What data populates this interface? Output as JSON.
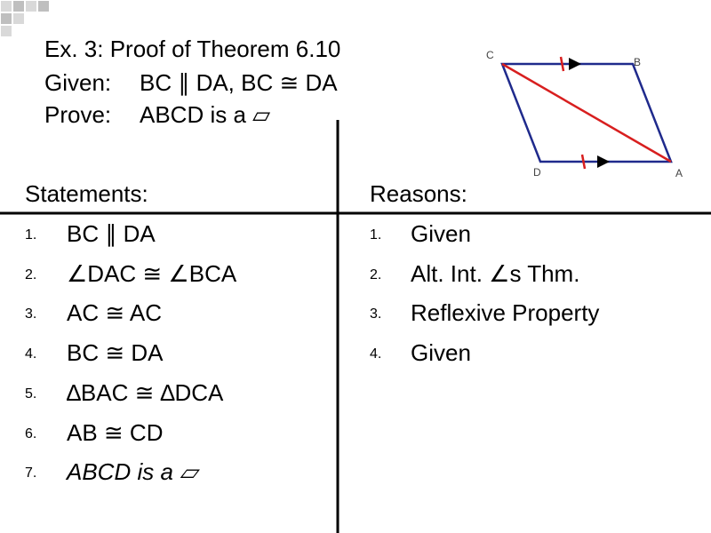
{
  "title": "Ex. 3:  Proof of Theorem 6.10",
  "given": {
    "label": "Given:",
    "text": "BC ∥ DA, BC ≅ DA"
  },
  "prove": {
    "label": "Prove:",
    "text": "ABCD is a ▱"
  },
  "diagram": {
    "vertices": [
      "C",
      "B",
      "D",
      "A"
    ]
  },
  "statements": {
    "header": "Statements:",
    "items": [
      {
        "number": "1.",
        "text": "BC ∥ DA"
      },
      {
        "number": "2.",
        "text": "∠DAC ≅ ∠BCA"
      },
      {
        "number": "3.",
        "text": "AC ≅ AC"
      },
      {
        "number": "4.",
        "text": "BC ≅ DA"
      },
      {
        "number": "5.",
        "text": "∆BAC ≅ ∆DCA"
      },
      {
        "number": "6.",
        "text": "AB ≅ CD"
      },
      {
        "number": "7.",
        "text": "ABCD is a ▱"
      }
    ]
  },
  "reasons": {
    "header": "Reasons:",
    "items": [
      {
        "number": "1.",
        "text": "Given"
      },
      {
        "number": "2.",
        "text": "Alt. Int. ∠s Thm."
      },
      {
        "number": "3.",
        "text": "Reflexive Property"
      },
      {
        "number": "4.",
        "text": "Given"
      }
    ]
  }
}
